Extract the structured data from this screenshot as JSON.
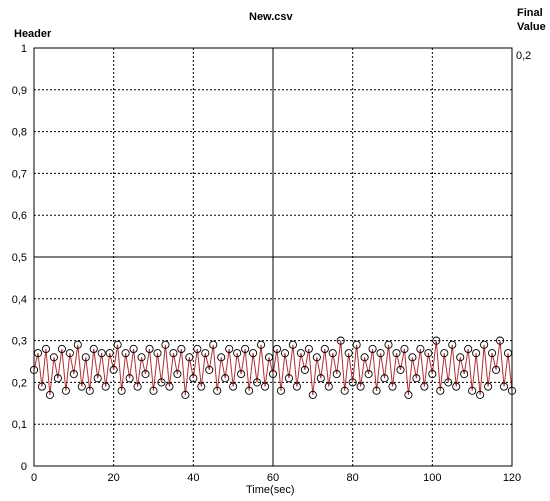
{
  "header": {
    "title": "New.csv",
    "ylabel": "Header",
    "final_value_label_1": "Final",
    "final_value_label_2": "Value",
    "final_value": "0,2"
  },
  "chart_data": {
    "type": "scatter",
    "title": "New.csv",
    "xlabel": "Time(sec)",
    "ylabel": "Header",
    "xlim": [
      0,
      120
    ],
    "ylim": [
      0,
      1
    ],
    "grid": true,
    "x_ticks": [
      "0",
      "20",
      "40",
      "60",
      "80",
      "100",
      "120"
    ],
    "y_ticks": [
      "0",
      "0,1",
      "0,2",
      "0,3",
      "0,4",
      "0,5",
      "0,6",
      "0,7",
      "0,8",
      "0,9",
      "1"
    ],
    "final_value": 0.2,
    "series": [
      {
        "marker": "open-circle",
        "line_color": "#b03030",
        "x": [
          0,
          1,
          2,
          3,
          4,
          5,
          6,
          7,
          8,
          9,
          10,
          11,
          12,
          13,
          14,
          15,
          16,
          17,
          18,
          19,
          20,
          21,
          22,
          23,
          24,
          25,
          26,
          27,
          28,
          29,
          30,
          31,
          32,
          33,
          34,
          35,
          36,
          37,
          38,
          39,
          40,
          41,
          42,
          43,
          44,
          45,
          46,
          47,
          48,
          49,
          50,
          51,
          52,
          53,
          54,
          55,
          56,
          57,
          58,
          59,
          60,
          61,
          62,
          63,
          64,
          65,
          66,
          67,
          68,
          69,
          70,
          71,
          72,
          73,
          74,
          75,
          76,
          77,
          78,
          79,
          80,
          81,
          82,
          83,
          84,
          85,
          86,
          87,
          88,
          89,
          90,
          91,
          92,
          93,
          94,
          95,
          96,
          97,
          98,
          99,
          100,
          101,
          102,
          103,
          104,
          105,
          106,
          107,
          108,
          109,
          110,
          111,
          112,
          113,
          114,
          115,
          116,
          117,
          118,
          119,
          120
        ],
        "y": [
          0.23,
          0.27,
          0.19,
          0.28,
          0.17,
          0.26,
          0.21,
          0.28,
          0.18,
          0.27,
          0.22,
          0.29,
          0.19,
          0.26,
          0.18,
          0.28,
          0.21,
          0.27,
          0.19,
          0.27,
          0.23,
          0.29,
          0.18,
          0.27,
          0.21,
          0.28,
          0.19,
          0.26,
          0.22,
          0.28,
          0.18,
          0.27,
          0.2,
          0.29,
          0.19,
          0.27,
          0.22,
          0.28,
          0.17,
          0.26,
          0.21,
          0.28,
          0.19,
          0.27,
          0.23,
          0.29,
          0.18,
          0.26,
          0.21,
          0.28,
          0.19,
          0.27,
          0.22,
          0.28,
          0.18,
          0.27,
          0.2,
          0.29,
          0.19,
          0.26,
          0.22,
          0.28,
          0.18,
          0.27,
          0.21,
          0.29,
          0.19,
          0.27,
          0.23,
          0.28,
          0.17,
          0.26,
          0.21,
          0.28,
          0.19,
          0.27,
          0.22,
          0.3,
          0.18,
          0.27,
          0.2,
          0.29,
          0.19,
          0.26,
          0.22,
          0.28,
          0.18,
          0.27,
          0.21,
          0.29,
          0.19,
          0.27,
          0.23,
          0.28,
          0.17,
          0.26,
          0.21,
          0.28,
          0.19,
          0.27,
          0.22,
          0.3,
          0.18,
          0.27,
          0.2,
          0.29,
          0.19,
          0.26,
          0.22,
          0.28,
          0.18,
          0.27,
          0.17,
          0.29,
          0.19,
          0.27,
          0.23,
          0.3,
          0.19,
          0.27,
          0.18
        ]
      }
    ]
  }
}
